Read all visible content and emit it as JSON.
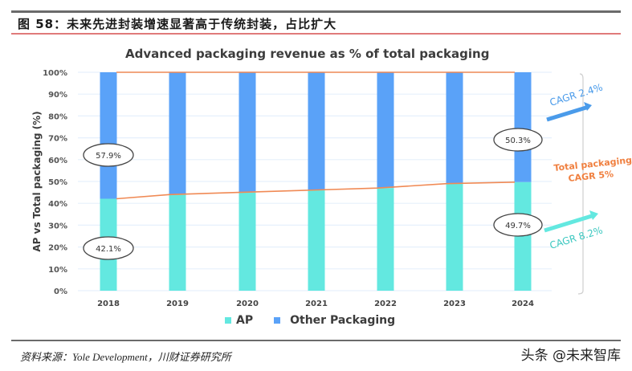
{
  "figure": {
    "title": "图 58：未来先进封装增速显著高于传统封装，占比扩大",
    "source": "资料来源：Yole Development，川财证券研究所",
    "watermark": "头条 @未来智库"
  },
  "colors": {
    "ap": "#63E8E0",
    "other": "#5AA2F8",
    "line": "#F08A55",
    "grid": "#E6F0FC",
    "cagr_other": "#4A9BEA",
    "cagr_ap": "#3CC8C0",
    "cagr_total": "#F08040"
  },
  "chart_data": {
    "type": "bar",
    "stacked": true,
    "title": "Advanced packaging revenue as % of total packaging",
    "xlabel": "",
    "ylabel": "AP vs Total packaging (%)",
    "ylim": [
      0,
      100
    ],
    "yticks": [
      "0%",
      "10%",
      "20%",
      "30%",
      "40%",
      "50%",
      "60%",
      "70%",
      "80%",
      "90%",
      "100%"
    ],
    "categories": [
      "2018",
      "2019",
      "2020",
      "2021",
      "2022",
      "2023",
      "2024"
    ],
    "series": [
      {
        "name": "AP",
        "values": [
          42.1,
          44.0,
          45.0,
          46.0,
          47.0,
          49.0,
          49.7
        ]
      },
      {
        "name": "Other Packaging",
        "values": [
          57.9,
          56.0,
          55.0,
          54.0,
          53.0,
          51.0,
          50.3
        ]
      }
    ],
    "legend": [
      "AP",
      "Other Packaging"
    ],
    "legend_position": "bottom",
    "grid": true,
    "annotations": [
      {
        "text": "57.9%",
        "category": "2018",
        "series": "Other Packaging"
      },
      {
        "text": "42.1%",
        "category": "2018",
        "series": "AP"
      },
      {
        "text": "50.3%",
        "category": "2024",
        "series": "Other Packaging"
      },
      {
        "text": "49.7%",
        "category": "2024",
        "series": "AP"
      },
      {
        "text": "CAGR 2.4%",
        "target": "Other Packaging"
      },
      {
        "text": "Total packaging CAGR 5%",
        "target": "Total"
      },
      {
        "text": "CAGR 8.2%",
        "target": "AP"
      }
    ]
  },
  "labels": {
    "bubble_2018_other": "57.9%",
    "bubble_2018_ap": "42.1%",
    "bubble_2024_other": "50.3%",
    "bubble_2024_ap": "49.7%",
    "cagr_other": "CAGR 2.4%",
    "cagr_total_line1": "Total packaging",
    "cagr_total_line2": "CAGR 5%",
    "cagr_ap": "CAGR 8.2%"
  }
}
